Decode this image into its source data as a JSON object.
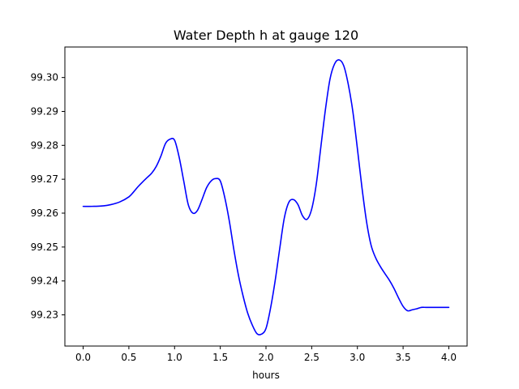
{
  "chart_data": {
    "type": "line",
    "title": "Water Depth h at gauge 120",
    "xlabel": "hours",
    "ylabel": "",
    "xlim": [
      -0.2,
      4.2
    ],
    "ylim": [
      99.2208,
      99.309
    ],
    "xticks": [
      0.0,
      0.5,
      1.0,
      1.5,
      2.0,
      2.5,
      3.0,
      3.5,
      4.0
    ],
    "xtick_labels": [
      "0.0",
      "0.5",
      "1.0",
      "1.5",
      "2.0",
      "2.5",
      "3.0",
      "3.5",
      "4.0"
    ],
    "yticks": [
      99.23,
      99.24,
      99.25,
      99.26,
      99.27,
      99.28,
      99.29,
      99.3
    ],
    "ytick_labels": [
      "99.23",
      "99.24",
      "99.25",
      "99.26",
      "99.27",
      "99.28",
      "99.29",
      "99.30"
    ],
    "grid": false,
    "series": [
      {
        "color": "#0000ff",
        "x": [
          0.0,
          0.1,
          0.2,
          0.3,
          0.4,
          0.5,
          0.55,
          0.6,
          0.65,
          0.7,
          0.75,
          0.8,
          0.85,
          0.9,
          0.95,
          1.0,
          1.05,
          1.1,
          1.15,
          1.2,
          1.25,
          1.3,
          1.35,
          1.4,
          1.45,
          1.5,
          1.55,
          1.6,
          1.65,
          1.7,
          1.75,
          1.8,
          1.85,
          1.9,
          1.95,
          2.0,
          2.05,
          2.1,
          2.15,
          2.2,
          2.25,
          2.3,
          2.35,
          2.4,
          2.45,
          2.5,
          2.55,
          2.6,
          2.65,
          2.7,
          2.75,
          2.8,
          2.85,
          2.9,
          2.95,
          3.0,
          3.05,
          3.1,
          3.15,
          3.2,
          3.25,
          3.3,
          3.35,
          3.4,
          3.45,
          3.5,
          3.55,
          3.6,
          3.65,
          3.7,
          3.75,
          3.8,
          3.85,
          3.9,
          3.95,
          4.0
        ],
        "y": [
          99.262,
          99.262,
          99.2621,
          99.2625,
          99.2633,
          99.2648,
          99.2662,
          99.2678,
          99.2692,
          99.2705,
          99.2718,
          99.2738,
          99.2768,
          99.2805,
          99.2818,
          99.2815,
          99.2765,
          99.2695,
          99.2625,
          99.26,
          99.2608,
          99.264,
          99.2675,
          99.2695,
          99.2702,
          99.2695,
          99.2645,
          99.2575,
          99.249,
          99.2415,
          99.2355,
          99.2305,
          99.227,
          99.2245,
          99.2243,
          99.226,
          99.232,
          99.24,
          99.2495,
          99.2585,
          99.2632,
          99.264,
          99.2625,
          99.2592,
          99.2582,
          99.2612,
          99.2685,
          99.2795,
          99.2905,
          99.2995,
          99.304,
          99.3052,
          99.3035,
          99.298,
          99.29,
          99.279,
          99.2675,
          99.2575,
          99.2505,
          99.2468,
          99.2443,
          99.2422,
          99.2402,
          99.2378,
          99.235,
          99.2325,
          99.2312,
          99.2315,
          99.2318,
          99.2322,
          99.2322,
          99.2322,
          99.2322,
          99.2322,
          99.2322,
          99.2322
        ]
      }
    ]
  }
}
